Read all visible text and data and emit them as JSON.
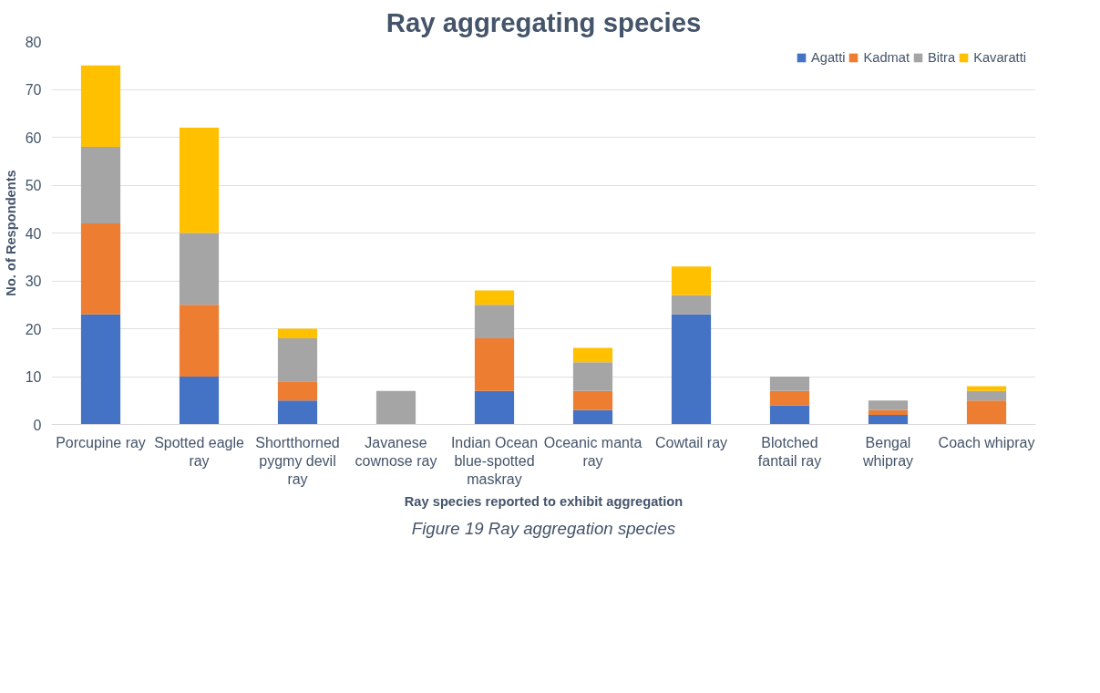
{
  "chart_data": {
    "type": "bar",
    "stacked": true,
    "title": "Ray aggregating species",
    "xlabel": "Ray species reported to exhibit aggregation",
    "ylabel": "No. of Respondents",
    "categories": [
      "Porcupine ray",
      "Spotted eagle ray",
      "Shortthorned pygmy devil ray",
      "Javanese cownose ray",
      "Indian Ocean blue-spotted maskray",
      "Oceanic manta ray",
      "Cowtail ray",
      "Blotched fantail ray",
      "Bengal whipray",
      "Coach whipray"
    ],
    "series": [
      {
        "name": "Agatti",
        "color": "#4472c4",
        "values": [
          23,
          10,
          5,
          0,
          7,
          3,
          23,
          4,
          2,
          0
        ]
      },
      {
        "name": "Kadmat",
        "color": "#ed7d31",
        "values": [
          19,
          15,
          4,
          0,
          11,
          4,
          0,
          3,
          1,
          5
        ]
      },
      {
        "name": "Bitra",
        "color": "#a5a5a5",
        "values": [
          16,
          15,
          9,
          7,
          7,
          6,
          4,
          3,
          2,
          2
        ]
      },
      {
        "name": "Kavaratti",
        "color": "#ffc000",
        "values": [
          17,
          22,
          2,
          0,
          3,
          3,
          6,
          0,
          0,
          1
        ]
      }
    ],
    "ylim": [
      0,
      80
    ],
    "yticks": [
      0,
      10,
      20,
      30,
      40,
      50,
      60,
      70,
      80
    ],
    "grid": "y",
    "legend": "top right",
    "annotations": [
      "Figure 19 Ray aggregation species"
    ]
  }
}
